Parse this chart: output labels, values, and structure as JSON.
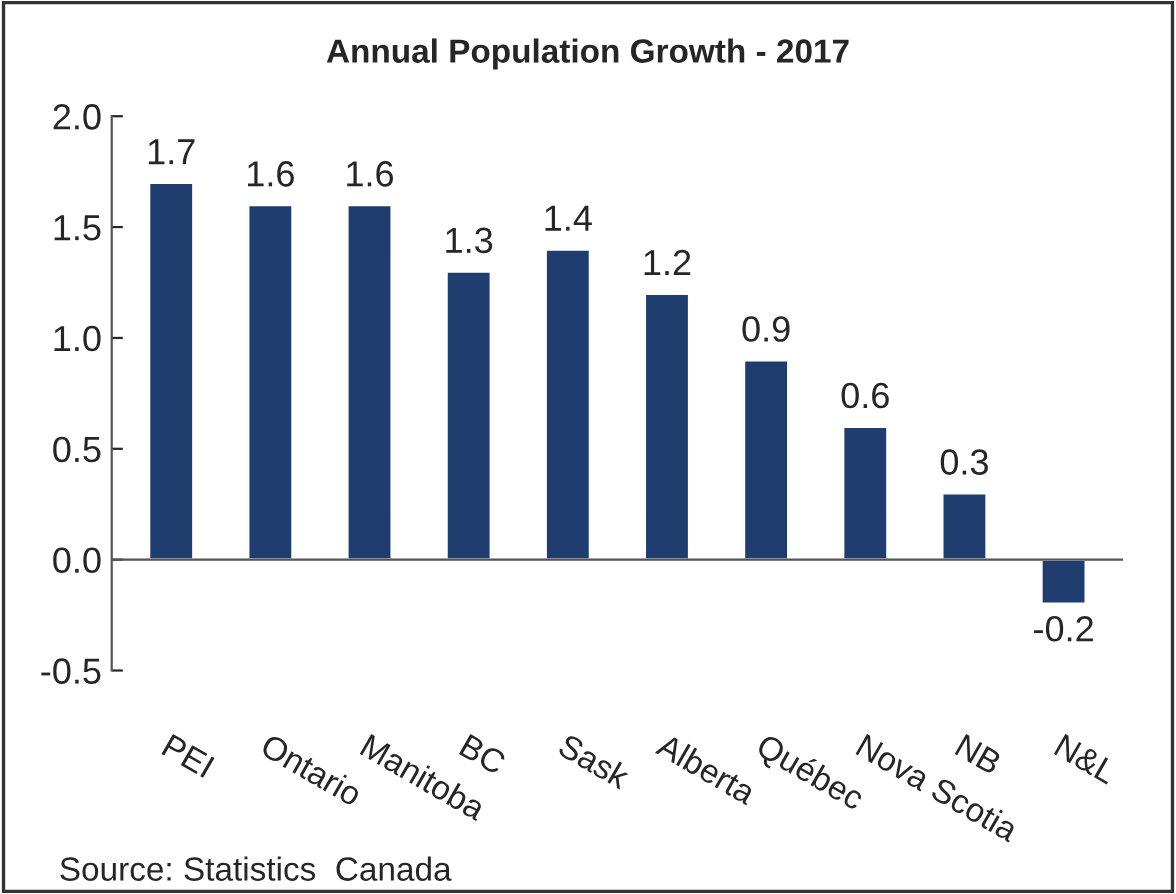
{
  "chart_data": {
    "type": "bar",
    "title": "Annual Population Growth - 2017",
    "categories": [
      "PEI",
      "Ontario",
      "Manitoba",
      "BC",
      "Sask",
      "Alberta",
      "Québec",
      "Nova Scotia",
      "NB",
      "N&L"
    ],
    "values": [
      1.7,
      1.6,
      1.6,
      1.3,
      1.4,
      1.2,
      0.9,
      0.6,
      0.3,
      -0.2
    ],
    "color": "#1f3d6e",
    "data_labels": true,
    "ylim": [
      -0.5,
      2.0
    ],
    "yticks": [
      {
        "value": -0.5,
        "label": "-0.5"
      },
      {
        "value": 0,
        "label": "0.0"
      },
      {
        "value": 0.5,
        "label": "0.5"
      },
      {
        "value": 1,
        "label": "1.0"
      },
      {
        "value": 1.5,
        "label": "1.5"
      },
      {
        "value": 2,
        "label": "2.0"
      }
    ],
    "ref_lines": [
      {
        "axis": "y",
        "value": 0,
        "color": "#555555"
      }
    ],
    "annotations": [
      "Source: Statistics  Canada"
    ]
  }
}
